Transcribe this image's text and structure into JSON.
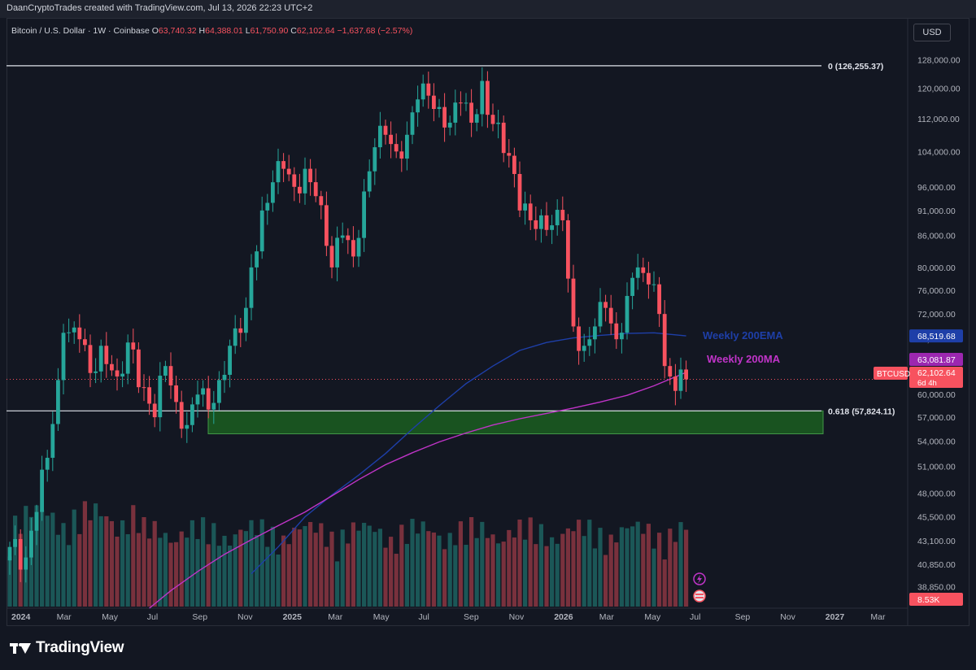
{
  "header": {
    "attribution": "DaanCryptoTrades created with TradingView.com, Jul 13, 2026 22:23 UTC+2"
  },
  "legend": {
    "symbol_desc": "Bitcoin / U.S. Dollar · 1W · Coinbase",
    "o_label": "O",
    "o_val": "63,740.32",
    "h_label": "H",
    "h_val": "64,388.01",
    "l_label": "L",
    "l_val": "61,750.90",
    "c_label": "C",
    "c_val": "62,102.64",
    "change": "−1,637.68 (−2.57%)"
  },
  "currency_button": "USD",
  "footer": {
    "brand": "TradingView"
  },
  "colors": {
    "background": "#131722",
    "up": "#26a69a",
    "down": "#f7525f",
    "ema": "#1e3fa8",
    "ma": "#c034c8",
    "zone_fill": "#1b5e20",
    "zone_border": "#4caf50"
  },
  "chart_data": {
    "type": "candlestick",
    "timeframe": "1W",
    "y_scale": "log",
    "ylim": [
      37000,
      130000
    ],
    "x_tick_labels": [
      "2024",
      "Mar",
      "May",
      "Jul",
      "Sep",
      "Nov",
      "2025",
      "Mar",
      "May",
      "Jul",
      "Sep",
      "Nov",
      "2026",
      "Mar",
      "May",
      "Jul",
      "Sep",
      "Nov",
      "2027",
      "Mar"
    ],
    "y_tick_labels": [
      "128,000.00",
      "120,000.00",
      "112,000.00",
      "104,000.00",
      "96,000.00",
      "91,000.00",
      "86,000.00",
      "80,000.00",
      "76,000.00",
      "72,000.00",
      "68,000.00",
      "63,000.00",
      "60,000.00",
      "57,000.00",
      "54,000.00",
      "51,000.00",
      "48,000.00",
      "45,500.00",
      "43,100.00",
      "40,850.00",
      "38,850.00"
    ],
    "y_tick_values": [
      128000,
      120000,
      112000,
      104000,
      96000,
      91000,
      86000,
      80000,
      76000,
      72000,
      68000,
      63000,
      60000,
      57000,
      54000,
      51000,
      48000,
      45500,
      43100,
      40850,
      38850
    ],
    "anchors": [
      {
        "x": 0,
        "y": 42500
      },
      {
        "x": 3,
        "y": 41500
      },
      {
        "x": 5,
        "y": 46000
      },
      {
        "x": 7,
        "y": 52000
      },
      {
        "x": 9,
        "y": 62000
      },
      {
        "x": 10,
        "y": 69000
      },
      {
        "x": 13,
        "y": 68000
      },
      {
        "x": 15,
        "y": 63000
      },
      {
        "x": 17,
        "y": 67000
      },
      {
        "x": 20,
        "y": 62500
      },
      {
        "x": 22,
        "y": 67500
      },
      {
        "x": 25,
        "y": 61000
      },
      {
        "x": 27,
        "y": 57000
      },
      {
        "x": 29,
        "y": 64000
      },
      {
        "x": 31,
        "y": 59000
      },
      {
        "x": 33,
        "y": 56000
      },
      {
        "x": 35,
        "y": 60000
      },
      {
        "x": 37,
        "y": 58000
      },
      {
        "x": 39,
        "y": 62000
      },
      {
        "x": 41,
        "y": 67000
      },
      {
        "x": 43,
        "y": 69000
      },
      {
        "x": 44,
        "y": 73000
      },
      {
        "x": 45,
        "y": 80000
      },
      {
        "x": 47,
        "y": 91000
      },
      {
        "x": 49,
        "y": 97000
      },
      {
        "x": 51,
        "y": 100000
      },
      {
        "x": 53,
        "y": 96000
      },
      {
        "x": 55,
        "y": 100000
      },
      {
        "x": 57,
        "y": 94000
      },
      {
        "x": 59,
        "y": 84000
      },
      {
        "x": 60,
        "y": 80000
      },
      {
        "x": 62,
        "y": 86000
      },
      {
        "x": 64,
        "y": 82000
      },
      {
        "x": 66,
        "y": 95000
      },
      {
        "x": 68,
        "y": 105000
      },
      {
        "x": 70,
        "y": 108000
      },
      {
        "x": 72,
        "y": 104000
      },
      {
        "x": 74,
        "y": 108000
      },
      {
        "x": 76,
        "y": 117000
      },
      {
        "x": 78,
        "y": 118000
      },
      {
        "x": 80,
        "y": 115000
      },
      {
        "x": 82,
        "y": 111000
      },
      {
        "x": 84,
        "y": 116000
      },
      {
        "x": 86,
        "y": 111000
      },
      {
        "x": 88,
        "y": 122000
      },
      {
        "x": 89,
        "y": 113000
      },
      {
        "x": 91,
        "y": 111000
      },
      {
        "x": 93,
        "y": 103000
      },
      {
        "x": 95,
        "y": 91000
      },
      {
        "x": 97,
        "y": 89000
      },
      {
        "x": 99,
        "y": 90000
      },
      {
        "x": 101,
        "y": 88000
      },
      {
        "x": 103,
        "y": 89000
      },
      {
        "x": 104,
        "y": 78000
      },
      {
        "x": 105,
        "y": 70000
      },
      {
        "x": 107,
        "y": 67000
      },
      {
        "x": 109,
        "y": 70000
      },
      {
        "x": 111,
        "y": 73000
      },
      {
        "x": 113,
        "y": 68000
      },
      {
        "x": 115,
        "y": 75000
      },
      {
        "x": 117,
        "y": 80000
      },
      {
        "x": 118,
        "y": 79000
      },
      {
        "x": 120,
        "y": 77000
      },
      {
        "x": 121,
        "y": 72000
      },
      {
        "x": 122,
        "y": 64000
      },
      {
        "x": 123,
        "y": 62500
      },
      {
        "x": 124,
        "y": 60500
      },
      {
        "x": 125,
        "y": 63500
      },
      {
        "x": 126,
        "y": 62100
      }
    ],
    "ma_200w": [
      {
        "x": 26,
        "y": 37000
      },
      {
        "x": 30,
        "y": 38500
      },
      {
        "x": 35,
        "y": 40200
      },
      {
        "x": 40,
        "y": 41800
      },
      {
        "x": 45,
        "y": 43200
      },
      {
        "x": 50,
        "y": 44600
      },
      {
        "x": 55,
        "y": 46000
      },
      {
        "x": 60,
        "y": 47700
      },
      {
        "x": 65,
        "y": 49500
      },
      {
        "x": 70,
        "y": 51200
      },
      {
        "x": 75,
        "y": 52600
      },
      {
        "x": 80,
        "y": 53900
      },
      {
        "x": 85,
        "y": 55000
      },
      {
        "x": 90,
        "y": 56000
      },
      {
        "x": 95,
        "y": 56800
      },
      {
        "x": 100,
        "y": 57500
      },
      {
        "x": 105,
        "y": 58200
      },
      {
        "x": 110,
        "y": 59000
      },
      {
        "x": 115,
        "y": 59900
      },
      {
        "x": 120,
        "y": 61200
      },
      {
        "x": 126,
        "y": 63081.87
      }
    ],
    "ema_200w": [
      {
        "x": 45,
        "y": 40000
      },
      {
        "x": 50,
        "y": 42500
      },
      {
        "x": 55,
        "y": 45500
      },
      {
        "x": 60,
        "y": 47800
      },
      {
        "x": 65,
        "y": 50000
      },
      {
        "x": 70,
        "y": 52500
      },
      {
        "x": 75,
        "y": 55500
      },
      {
        "x": 80,
        "y": 58500
      },
      {
        "x": 85,
        "y": 61500
      },
      {
        "x": 90,
        "y": 64000
      },
      {
        "x": 95,
        "y": 66300
      },
      {
        "x": 100,
        "y": 67500
      },
      {
        "x": 105,
        "y": 68200
      },
      {
        "x": 110,
        "y": 68600
      },
      {
        "x": 115,
        "y": 68900
      },
      {
        "x": 120,
        "y": 69000
      },
      {
        "x": 126,
        "y": 68519.68
      }
    ],
    "hline_top": {
      "label": "0 (126,255.37)",
      "value": 126255.37
    },
    "hline_fib": {
      "label": "0.618 (57,824.11)",
      "value": 57824.11
    },
    "zone": {
      "top": 57824.11,
      "bottom": 54900
    },
    "ema_label": "Weekly 200EMA",
    "ma_label": "Weekly 200MA",
    "price_tags": {
      "ema": "68,519.68",
      "ma": "63,081.87",
      "price": "62,102.64",
      "symbol": "BTCUSD",
      "countdown": "6d 4h",
      "volume": "8.53K"
    },
    "volume_note": "relative volume bars"
  }
}
